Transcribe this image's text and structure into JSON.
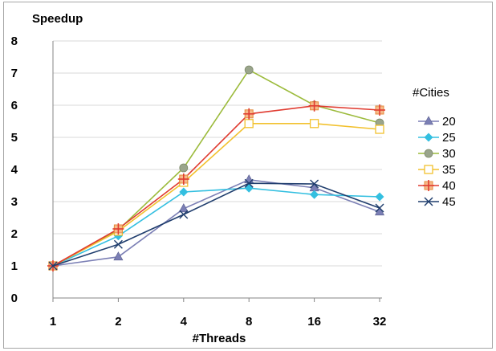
{
  "chart_data": {
    "type": "line",
    "ylabel": "Speedup",
    "xlabel": "#Threads",
    "categories": [
      "1",
      "2",
      "4",
      "8",
      "16",
      "32"
    ],
    "ylim": [
      0,
      8
    ],
    "yticks": [
      "0",
      "1",
      "2",
      "3",
      "4",
      "5",
      "6",
      "7",
      "8"
    ],
    "grid": "horizontal",
    "legend_title": "#Cities",
    "legend_position": "right",
    "series": [
      {
        "name": "20",
        "values": [
          1.0,
          1.28,
          2.78,
          3.68,
          3.43,
          2.68
        ],
        "color": "#7b7fb5",
        "marker": "triangle"
      },
      {
        "name": "25",
        "values": [
          1.0,
          1.93,
          3.3,
          3.42,
          3.22,
          3.15
        ],
        "color": "#33bfe0",
        "marker": "diamond"
      },
      {
        "name": "30",
        "values": [
          1.0,
          2.12,
          4.05,
          7.1,
          6.0,
          5.45
        ],
        "color": "#9cbb3c",
        "marker": "circle"
      },
      {
        "name": "35",
        "values": [
          1.0,
          2.08,
          3.6,
          5.43,
          5.43,
          5.25
        ],
        "color": "#f2c12e",
        "marker": "square"
      },
      {
        "name": "40",
        "values": [
          1.0,
          2.15,
          3.7,
          5.73,
          5.98,
          5.85
        ],
        "color": "#e03c31",
        "marker": "plus-square"
      },
      {
        "name": "45",
        "values": [
          1.0,
          1.67,
          2.6,
          3.57,
          3.55,
          2.8
        ],
        "color": "#1f3d6d",
        "marker": "x"
      }
    ]
  }
}
